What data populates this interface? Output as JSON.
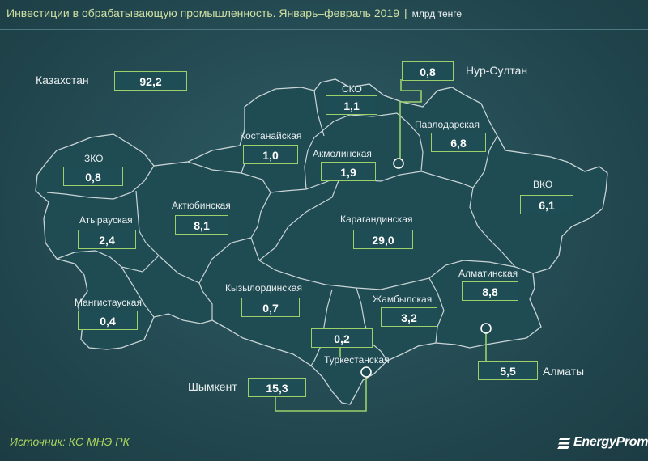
{
  "header": {
    "title": "Инвестиции в обрабатывающую промышленность. Январь–февраль 2019",
    "separator": "|",
    "unit": "млрд тенге"
  },
  "country": {
    "label": "Казахстан",
    "value": "92,2"
  },
  "regions": {
    "zko": {
      "label": "ЗКО",
      "value": "0,8"
    },
    "atyrau": {
      "label": "Атырауская",
      "value": "2,4"
    },
    "mangistau": {
      "label": "Мангистауская",
      "value": "0,4"
    },
    "aktobe": {
      "label": "Актюбинская",
      "value": "8,1"
    },
    "kostanay": {
      "label": "Костанайская",
      "value": "1,0"
    },
    "sko": {
      "label": "СКО",
      "value": "1,1"
    },
    "akmola": {
      "label": "Акмолинская",
      "value": "1,9"
    },
    "pavlodar": {
      "label": "Павлодарская",
      "value": "6,8"
    },
    "vko": {
      "label": "ВКО",
      "value": "6,1"
    },
    "karaganda": {
      "label": "Карагандинская",
      "value": "29,0"
    },
    "kyzylorda": {
      "label": "Кызылординская",
      "value": "0,7"
    },
    "zhambyl": {
      "label": "Жамбылская",
      "value": "3,2"
    },
    "almaty_region": {
      "label": "Алматинская",
      "value": "8,8"
    },
    "turkestan": {
      "label": "Туркестанская",
      "value": "0,2"
    }
  },
  "cities": {
    "nur_sultan": {
      "label": "Нур-Султан",
      "value": "0,8"
    },
    "shymkent": {
      "label": "Шымкент",
      "value": "15,3"
    },
    "almaty": {
      "label": "Алматы",
      "value": "5,5"
    }
  },
  "footer": {
    "source": "Источник: КС МНЭ РК",
    "logo": "EnergyProm"
  },
  "colors": {
    "background": "#24505a",
    "region_fill": "#1f4b53",
    "border": "#c9d4d6",
    "value_box_border": "#9bd06b",
    "title": "#cfe0a4",
    "source": "#a8d45e"
  }
}
